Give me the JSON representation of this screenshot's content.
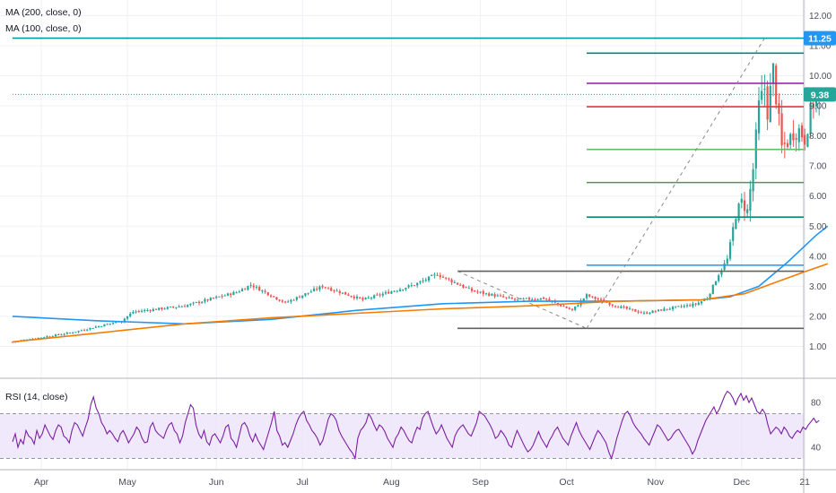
{
  "legend": {
    "ma200": "MA (200, close, 0)",
    "ma100": "MA (100, close, 0)",
    "rsi": "RSI (14, close)"
  },
  "price_badges": {
    "top": "11.25",
    "last": "9.38"
  },
  "colors": {
    "up": "#26a69a",
    "down": "#ef5350",
    "ma200": "#2196f3",
    "ma100": "#f57c00",
    "rsi_line": "#7b1fa2",
    "rsi_band": "#ebe2fb",
    "badge_top": "#2196f3",
    "badge_last": "#26a69a",
    "grid": "#eef0f4",
    "axis_text": "#4a4e5a"
  },
  "chart_data": [
    {
      "type": "candlestick",
      "title": "",
      "series": [
        {
          "name": "MA (200, close, 0)",
          "role": "ma200"
        },
        {
          "name": "MA (100, close, 0)",
          "role": "ma100"
        }
      ],
      "x_axis": {
        "labels": [
          "Apr",
          "May",
          "Jun",
          "Jul",
          "Aug",
          "Sep",
          "Oct",
          "Nov",
          "Dec",
          "21"
        ],
        "label_days": [
          10,
          40,
          71,
          101,
          132,
          163,
          193,
          224,
          254,
          276
        ]
      },
      "y_axis": {
        "ticks": [
          "1.00",
          "2.00",
          "3.00",
          "4.00",
          "5.00",
          "6.00",
          "7.00",
          "8.00",
          "9.00",
          "10.00",
          "11.00",
          "12.00"
        ],
        "ylim": [
          0.0,
          12.4
        ]
      },
      "ohlc_days": [
        0,
        279
      ],
      "key_closes": [
        [
          0,
          1.15
        ],
        [
          20,
          1.45
        ],
        [
          38,
          1.85
        ],
        [
          42,
          2.15
        ],
        [
          60,
          2.35
        ],
        [
          78,
          2.8
        ],
        [
          83,
          3.05
        ],
        [
          95,
          2.45
        ],
        [
          108,
          3.0
        ],
        [
          122,
          2.55
        ],
        [
          140,
          3.05
        ],
        [
          148,
          3.4
        ],
        [
          160,
          2.85
        ],
        [
          175,
          2.55
        ],
        [
          185,
          2.6
        ],
        [
          195,
          2.2
        ],
        [
          200,
          2.7
        ],
        [
          210,
          2.35
        ],
        [
          220,
          2.1
        ],
        [
          228,
          2.25
        ],
        [
          238,
          2.4
        ],
        [
          242,
          2.6
        ],
        [
          246,
          3.4
        ],
        [
          249,
          3.9
        ],
        [
          252,
          5.4
        ],
        [
          254,
          5.8
        ],
        [
          256,
          5.5
        ],
        [
          258,
          6.9
        ],
        [
          260,
          9.0
        ],
        [
          262,
          9.6
        ],
        [
          263,
          8.8
        ],
        [
          265,
          10.2
        ],
        [
          266,
          9.3
        ],
        [
          268,
          7.6
        ],
        [
          270,
          7.8
        ],
        [
          272,
          8.1
        ],
        [
          274,
          8.2
        ],
        [
          276,
          7.9
        ],
        [
          278,
          8.8
        ],
        [
          279,
          9.1
        ],
        [
          281,
          9.38
        ]
      ],
      "ma200": [
        [
          0,
          2.0
        ],
        [
          30,
          1.85
        ],
        [
          60,
          1.75
        ],
        [
          90,
          1.9
        ],
        [
          120,
          2.2
        ],
        [
          150,
          2.42
        ],
        [
          180,
          2.5
        ],
        [
          210,
          2.5
        ],
        [
          240,
          2.55
        ],
        [
          250,
          2.65
        ],
        [
          260,
          3.0
        ],
        [
          270,
          3.8
        ],
        [
          280,
          4.7
        ],
        [
          284,
          5.0
        ]
      ],
      "ma100": [
        [
          0,
          1.15
        ],
        [
          30,
          1.45
        ],
        [
          60,
          1.75
        ],
        [
          90,
          1.95
        ],
        [
          120,
          2.1
        ],
        [
          150,
          2.25
        ],
        [
          180,
          2.35
        ],
        [
          210,
          2.5
        ],
        [
          240,
          2.55
        ],
        [
          255,
          2.75
        ],
        [
          265,
          3.1
        ],
        [
          275,
          3.45
        ],
        [
          284,
          3.75
        ]
      ],
      "horizontal_levels": [
        {
          "value": 11.25,
          "color": "#0097a7",
          "from_day": 0
        },
        {
          "value": 10.75,
          "color": "#00897b",
          "from_day": 200
        },
        {
          "value": 9.75,
          "color": "#9c27b0",
          "from_day": 200
        },
        {
          "value": 9.38,
          "color": "#26a69a",
          "from_day": 0,
          "dotted": true
        },
        {
          "value": 8.97,
          "color": "#e53935",
          "from_day": 200
        },
        {
          "value": 7.55,
          "color": "#66bb6a",
          "from_day": 200
        },
        {
          "value": 6.45,
          "color": "#43a047",
          "from_day": 200
        },
        {
          "value": 5.3,
          "color": "#00897b",
          "from_day": 200
        },
        {
          "value": 3.7,
          "color": "#2196f3",
          "from_day": 200
        },
        {
          "value": 3.5,
          "color": "#616161",
          "from_day": 155
        },
        {
          "value": 1.6,
          "color": "#616161",
          "from_day": 155
        }
      ],
      "trend_lines": [
        {
          "from": [
            155,
            3.5
          ],
          "to": [
            200,
            1.6
          ],
          "dashed": true
        },
        {
          "from": [
            200,
            1.6
          ],
          "to": [
            262,
            11.25
          ],
          "dashed": true
        }
      ]
    },
    {
      "type": "line",
      "title": "RSI (14, close)",
      "y_axis": {
        "ticks": [
          "40",
          "80"
        ],
        "ylim": [
          20,
          100
        ],
        "band": [
          30,
          70
        ]
      },
      "values": [
        45,
        52,
        40,
        47,
        43,
        55,
        50,
        48,
        43,
        55,
        48,
        52,
        60,
        55,
        50,
        47,
        55,
        60,
        58,
        50,
        48,
        44,
        55,
        62,
        60,
        55,
        50,
        58,
        65,
        78,
        85,
        75,
        70,
        62,
        58,
        52,
        55,
        52,
        48,
        45,
        52,
        55,
        50,
        44,
        48,
        52,
        58,
        55,
        48,
        44,
        45,
        58,
        62,
        55,
        52,
        50,
        48,
        55,
        60,
        62,
        55,
        52,
        44,
        50,
        62,
        70,
        78,
        75,
        60,
        52,
        48,
        55,
        45,
        42,
        50,
        52,
        48,
        44,
        50,
        58,
        60,
        48,
        45,
        40,
        50,
        60,
        62,
        58,
        50,
        45,
        52,
        46,
        42,
        38,
        46,
        54,
        62,
        72,
        55,
        50,
        42,
        44,
        40,
        46,
        52,
        60,
        66,
        70,
        72,
        64,
        60,
        55,
        52,
        48,
        42,
        46,
        55,
        65,
        70,
        68,
        64,
        55,
        50,
        46,
        42,
        38,
        35,
        30,
        48,
        55,
        58,
        62,
        70,
        66,
        60,
        55,
        60,
        58,
        54,
        48,
        44,
        40,
        48,
        52,
        58,
        55,
        50,
        46,
        44,
        52,
        58,
        56,
        66,
        70,
        72,
        65,
        58,
        52,
        55,
        60,
        54,
        48,
        44,
        40,
        50,
        55,
        58,
        60,
        56,
        52,
        50,
        56,
        62,
        72,
        70,
        68,
        64,
        60,
        55,
        48,
        50,
        55,
        52,
        48,
        42,
        40,
        48,
        55,
        50,
        45,
        40,
        36,
        38,
        42,
        48,
        54,
        48,
        44,
        40,
        46,
        50,
        55,
        58,
        53,
        48,
        45,
        42,
        50,
        56,
        62,
        55,
        50,
        46,
        42,
        38,
        44,
        50,
        55,
        52,
        48,
        44,
        36,
        30,
        38,
        48,
        56,
        64,
        70,
        72,
        68,
        62,
        58,
        55,
        52,
        48,
        45,
        42,
        48,
        54,
        60,
        58,
        54,
        50,
        46,
        48,
        52,
        55,
        56,
        52,
        48,
        44,
        40,
        34,
        38,
        46,
        52,
        58,
        64,
        68,
        72,
        76,
        70,
        74,
        80,
        86,
        90,
        88,
        84,
        78,
        84,
        88,
        82,
        86,
        80,
        84,
        78,
        72,
        70,
        74,
        70,
        60,
        52,
        55,
        58,
        56,
        52,
        58,
        55,
        50,
        48,
        52,
        55,
        53,
        58,
        56,
        60,
        63,
        66,
        62,
        64
      ]
    }
  ]
}
